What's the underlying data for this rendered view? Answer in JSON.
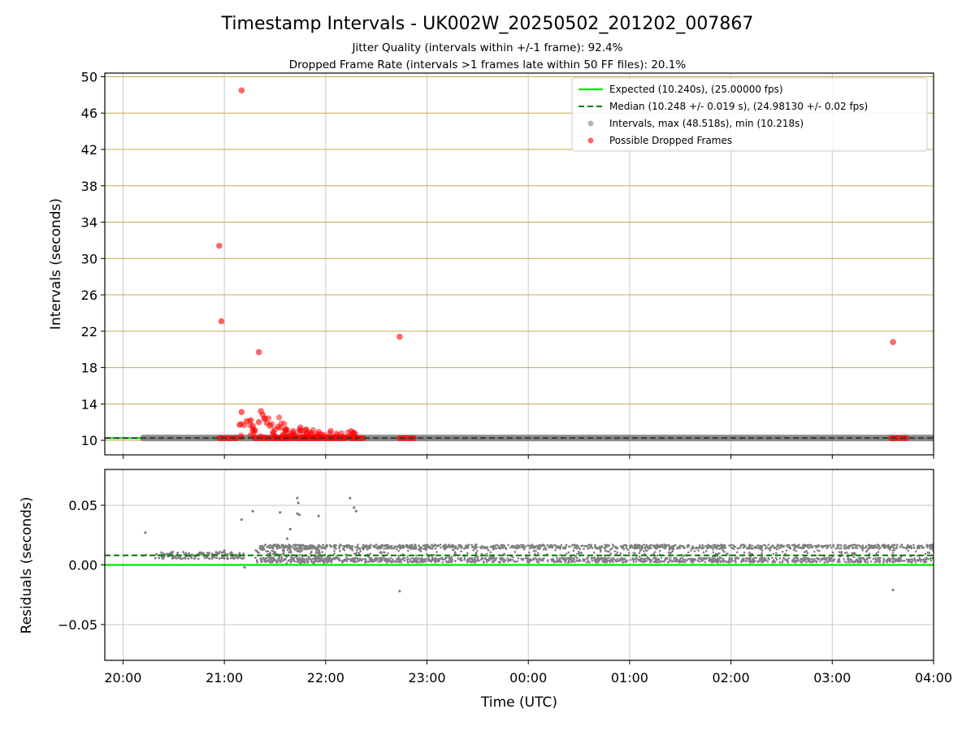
{
  "chart_data": {
    "type": "scatter",
    "title": "Timestamp Intervals - UK002W_20250502_201202_007867",
    "subtitles": [
      "Jitter Quality (intervals within +/-1 frame): 92.4%",
      "Dropped Frame Rate (intervals >1 frames late within 50 FF files): 20.1%"
    ],
    "xlabel": "Time (UTC)",
    "x_ticks": [
      "20:00",
      "21:00",
      "22:00",
      "23:00",
      "00:00",
      "01:00",
      "02:00",
      "03:00",
      "04:00"
    ],
    "x_range_hours": [
      19.82,
      28.0
    ],
    "grid": true,
    "legend_placement": "top-right",
    "top_panel": {
      "ylabel": "Intervals (seconds)",
      "ylim": [
        8.4,
        50.4
      ],
      "y_ticks": [
        "10",
        "14",
        "18",
        "22",
        "26",
        "30",
        "34",
        "38",
        "42",
        "46",
        "50"
      ],
      "expected_interval": 10.24,
      "median_interval": 10.248,
      "legend": [
        "Expected (10.240s), (25.00000 fps)",
        "Median (10.248 +/- 0.019 s), (24.98130 +/- 0.02 fps)",
        "Intervals, max (48.518s), min (10.218s)",
        "Possible Dropped Frames"
      ],
      "intervals_band": {
        "from_hour": 20.2,
        "to_hour": 28.0,
        "value": 10.25
      },
      "dropped_frames": [
        {
          "t": 20.95,
          "v": 31.4
        },
        {
          "t": 20.97,
          "v": 23.1
        },
        {
          "t": 21.17,
          "v": 48.5
        },
        {
          "t": 21.34,
          "v": 19.7
        },
        {
          "t": 22.73,
          "v": 21.4
        },
        {
          "t": 27.6,
          "v": 20.8
        },
        {
          "t": 21.17,
          "v": 13.1
        },
        {
          "t": 21.22,
          "v": 12.1
        },
        {
          "t": 21.28,
          "v": 11.6
        },
        {
          "t": 21.36,
          "v": 13.2
        },
        {
          "t": 21.38,
          "v": 12.8
        },
        {
          "t": 21.4,
          "v": 12.4
        },
        {
          "t": 21.42,
          "v": 11.9
        },
        {
          "t": 21.45,
          "v": 11.6
        },
        {
          "t": 21.5,
          "v": 11.2
        },
        {
          "t": 21.55,
          "v": 11.4
        },
        {
          "t": 21.62,
          "v": 10.9
        },
        {
          "t": 21.68,
          "v": 11.0
        },
        {
          "t": 21.75,
          "v": 11.4
        },
        {
          "t": 21.8,
          "v": 11.1
        },
        {
          "t": 21.86,
          "v": 10.8
        },
        {
          "t": 21.95,
          "v": 10.7
        },
        {
          "t": 22.05,
          "v": 11.0
        },
        {
          "t": 22.25,
          "v": 11.0
        },
        {
          "t": 22.28,
          "v": 10.8
        },
        {
          "t": 21.15,
          "v": 11.7
        },
        {
          "t": 21.3,
          "v": 11.0
        },
        {
          "t": 21.34,
          "v": 12.0
        },
        {
          "t": 21.48,
          "v": 10.9
        },
        {
          "t": 21.58,
          "v": 10.6
        }
      ],
      "dropped_runs": [
        {
          "from": 20.95,
          "to": 21.12,
          "v": 10.24
        },
        {
          "from": 21.3,
          "to": 21.6,
          "v": 10.24
        },
        {
          "from": 21.6,
          "to": 22.2,
          "v": 10.24
        },
        {
          "from": 22.25,
          "to": 22.37,
          "v": 10.24
        },
        {
          "from": 22.73,
          "to": 22.87,
          "v": 10.24
        },
        {
          "from": 27.58,
          "to": 27.73,
          "v": 10.24
        }
      ]
    },
    "bottom_panel": {
      "ylabel": "Residuals (seconds)",
      "ylim": [
        -0.08,
        0.08
      ],
      "y_ticks": [
        "0.05",
        "0.00",
        "−0.05"
      ],
      "expected_residual": 0.0,
      "median_residual": 0.008,
      "outliers": [
        {
          "t": 20.22,
          "v": 0.027
        },
        {
          "t": 21.17,
          "v": 0.038
        },
        {
          "t": 21.28,
          "v": 0.045
        },
        {
          "t": 21.55,
          "v": 0.044
        },
        {
          "t": 21.72,
          "v": 0.056
        },
        {
          "t": 21.73,
          "v": 0.052
        },
        {
          "t": 21.72,
          "v": 0.043
        },
        {
          "t": 21.74,
          "v": 0.042
        },
        {
          "t": 21.93,
          "v": 0.041
        },
        {
          "t": 22.24,
          "v": 0.056
        },
        {
          "t": 22.28,
          "v": 0.048
        },
        {
          "t": 22.3,
          "v": 0.045
        },
        {
          "t": 22.73,
          "v": -0.022
        },
        {
          "t": 27.6,
          "v": -0.021
        },
        {
          "t": 21.2,
          "v": -0.002
        },
        {
          "t": 21.0,
          "v": 0.012
        },
        {
          "t": 21.65,
          "v": 0.03
        },
        {
          "t": 21.62,
          "v": 0.022
        }
      ],
      "band_early": {
        "from_hour": 20.2,
        "to_hour": 21.2,
        "min": 0.005,
        "max": 0.011
      },
      "band_main": {
        "from_hour": 21.35,
        "to_hour": 28.0,
        "min": 0.002,
        "max": 0.017
      }
    },
    "colors": {
      "expected": "#00e600",
      "median": "#007a00",
      "intervals": "#808080",
      "dropped": "#ff0000",
      "grid_h_top": "#c8a850",
      "grid": "#c8c8c8"
    }
  }
}
